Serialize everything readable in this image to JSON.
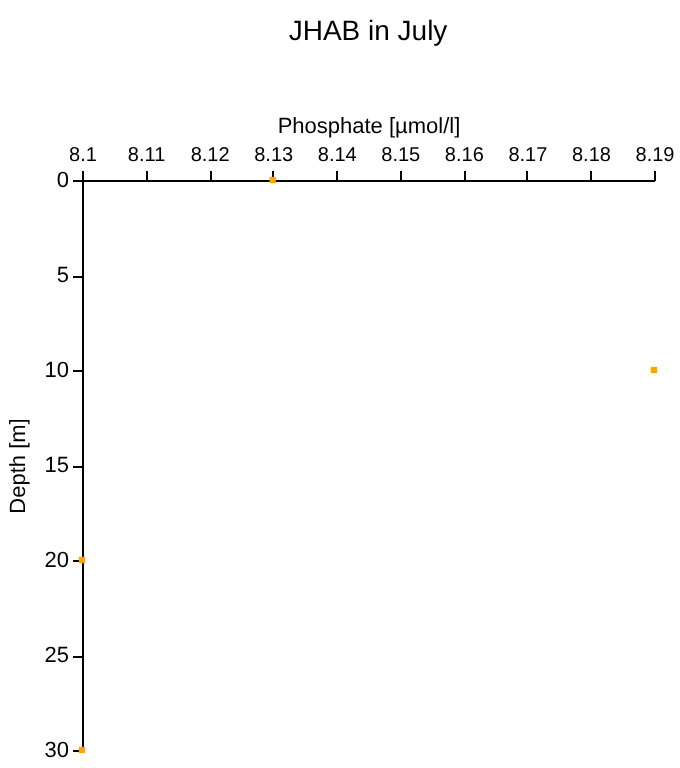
{
  "chart_data": {
    "type": "scatter",
    "title": "JHAB in July",
    "xlabel": "Phosphate [µmol/l]",
    "ylabel": "Depth [m]",
    "x": [
      8.13,
      8.19,
      8.1,
      8.1
    ],
    "series": [
      {
        "color": "#ffa500",
        "values": [
          0,
          10,
          20,
          30
        ]
      }
    ],
    "xlim": [
      8.1,
      8.19
    ],
    "xticks": [
      8.1,
      8.11,
      8.12,
      8.13,
      8.14,
      8.15,
      8.16,
      8.17,
      8.18,
      8.19
    ],
    "ylim": [
      30,
      0
    ],
    "yticks": [
      0,
      5,
      10,
      15,
      20,
      25,
      30
    ],
    "marker": "square"
  }
}
